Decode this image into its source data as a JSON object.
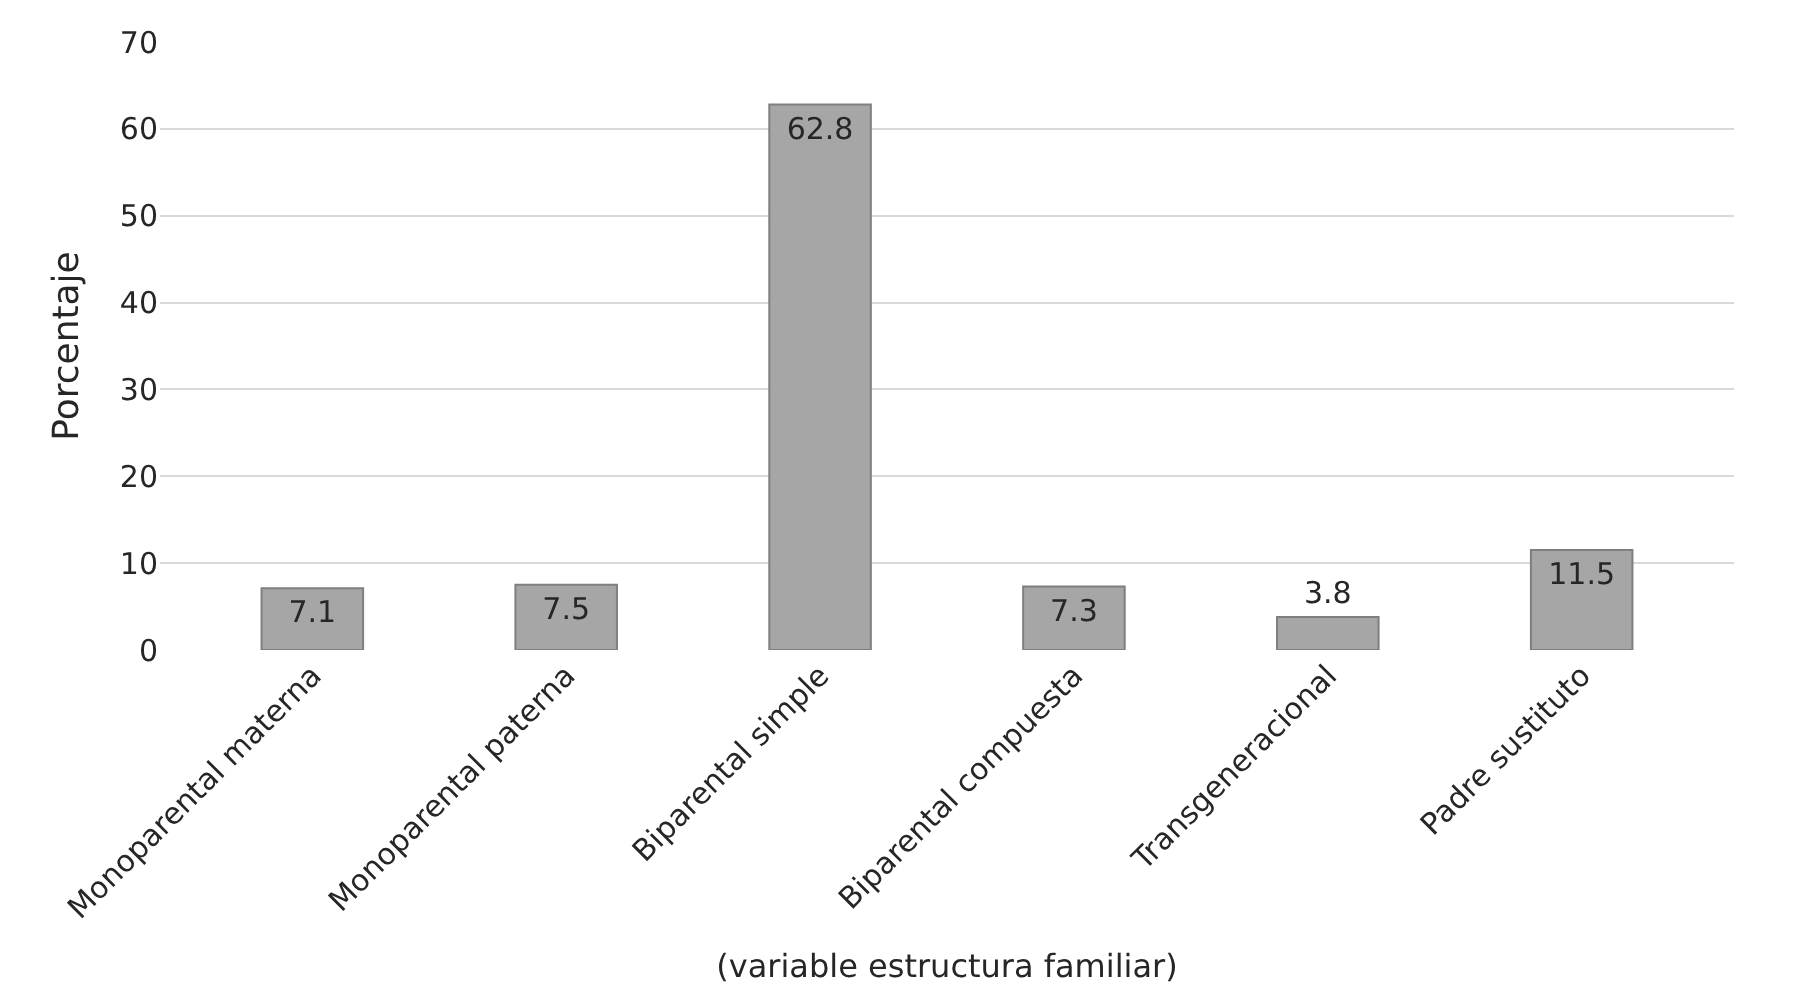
{
  "chart_data": {
    "type": "bar",
    "xlabel": "(variable estructura familiar)",
    "ylabel": "Porcentaje",
    "categories": [
      "Monoparental materna",
      "Monoparental paterna",
      "Biparental simple",
      "Biparental compuesta",
      "Transgeneracional",
      "Padre sustituto"
    ],
    "values": [
      7.1,
      7.5,
      62.8,
      7.3,
      3.8,
      11.5
    ],
    "color": "#a6a6a6",
    "ylim": [
      0,
      70
    ],
    "yticks": [
      0,
      10,
      20,
      30,
      40,
      50,
      60,
      70
    ],
    "grid": "y",
    "data_labels": true,
    "legend": false
  }
}
